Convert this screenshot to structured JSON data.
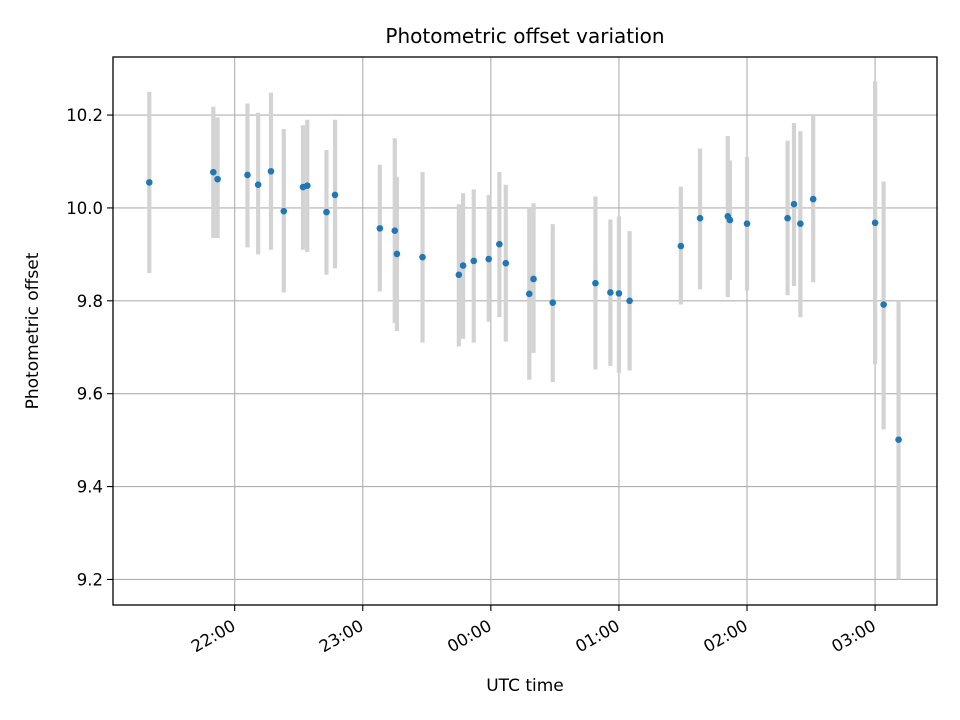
{
  "chart_data": {
    "type": "scatter",
    "title": "Photometric offset variation",
    "xlabel": "UTC time",
    "ylabel": "Photometric offset",
    "grid": true,
    "xlim": [
      "21:03",
      "03:29"
    ],
    "ylim": [
      9.145,
      10.325
    ],
    "x_ticks": [
      "22:00",
      "23:00",
      "00:00",
      "01:00",
      "02:00",
      "03:00"
    ],
    "y_ticks": [
      "9.2",
      "9.4",
      "9.6",
      "9.8",
      "10.0",
      "10.2"
    ],
    "colors": {
      "point": "#1f77b4",
      "errorbar": "#d3d3d3",
      "grid": "#b0b0b0"
    },
    "points": [
      {
        "x": "21:20",
        "y": 10.055,
        "lo": 9.86,
        "hi": 10.25
      },
      {
        "x": "21:50",
        "y": 10.077,
        "lo": 9.935,
        "hi": 10.218
      },
      {
        "x": "21:52",
        "y": 10.062,
        "lo": 9.935,
        "hi": 10.195
      },
      {
        "x": "22:06",
        "y": 10.071,
        "lo": 9.915,
        "hi": 10.225
      },
      {
        "x": "22:11",
        "y": 10.05,
        "lo": 9.9,
        "hi": 10.205
      },
      {
        "x": "22:17",
        "y": 10.079,
        "lo": 9.91,
        "hi": 10.248
      },
      {
        "x": "22:23",
        "y": 9.993,
        "lo": 9.818,
        "hi": 10.17
      },
      {
        "x": "22:32",
        "y": 10.045,
        "lo": 9.91,
        "hi": 10.178
      },
      {
        "x": "22:34",
        "y": 10.048,
        "lo": 9.905,
        "hi": 10.19
      },
      {
        "x": "22:43",
        "y": 9.991,
        "lo": 9.856,
        "hi": 10.125
      },
      {
        "x": "22:47",
        "y": 10.028,
        "lo": 9.87,
        "hi": 10.19
      },
      {
        "x": "23:08",
        "y": 9.956,
        "lo": 9.82,
        "hi": 10.093
      },
      {
        "x": "23:15",
        "y": 9.951,
        "lo": 9.752,
        "hi": 10.15
      },
      {
        "x": "23:16",
        "y": 9.901,
        "lo": 9.735,
        "hi": 10.067
      },
      {
        "x": "23:28",
        "y": 9.894,
        "lo": 9.71,
        "hi": 10.077
      },
      {
        "x": "23:45",
        "y": 9.856,
        "lo": 9.702,
        "hi": 10.008
      },
      {
        "x": "23:47",
        "y": 9.876,
        "lo": 9.718,
        "hi": 10.032
      },
      {
        "x": "23:52",
        "y": 9.886,
        "lo": 9.71,
        "hi": 10.04
      },
      {
        "x": "23:59",
        "y": 9.89,
        "lo": 9.755,
        "hi": 10.028
      },
      {
        "x": "00:04",
        "y": 9.922,
        "lo": 9.765,
        "hi": 10.077
      },
      {
        "x": "00:07",
        "y": 9.881,
        "lo": 9.712,
        "hi": 10.05
      },
      {
        "x": "00:18",
        "y": 9.815,
        "lo": 9.63,
        "hi": 10.0
      },
      {
        "x": "00:20",
        "y": 9.847,
        "lo": 9.688,
        "hi": 10.01
      },
      {
        "x": "00:29",
        "y": 9.796,
        "lo": 9.625,
        "hi": 9.965
      },
      {
        "x": "00:49",
        "y": 9.838,
        "lo": 9.652,
        "hi": 10.025
      },
      {
        "x": "00:56",
        "y": 9.818,
        "lo": 9.66,
        "hi": 9.975
      },
      {
        "x": "01:00",
        "y": 9.816,
        "lo": 9.645,
        "hi": 9.982
      },
      {
        "x": "01:05",
        "y": 9.8,
        "lo": 9.65,
        "hi": 9.95
      },
      {
        "x": "01:29",
        "y": 9.918,
        "lo": 9.792,
        "hi": 10.046
      },
      {
        "x": "01:38",
        "y": 9.978,
        "lo": 9.825,
        "hi": 10.128
      },
      {
        "x": "01:51",
        "y": 9.982,
        "lo": 9.808,
        "hi": 10.155
      },
      {
        "x": "01:52",
        "y": 9.974,
        "lo": 9.845,
        "hi": 10.102
      },
      {
        "x": "02:00",
        "y": 9.966,
        "lo": 9.822,
        "hi": 10.11
      },
      {
        "x": "02:19",
        "y": 9.978,
        "lo": 9.812,
        "hi": 10.145
      },
      {
        "x": "02:22",
        "y": 10.008,
        "lo": 9.832,
        "hi": 10.183
      },
      {
        "x": "02:25",
        "y": 9.966,
        "lo": 9.765,
        "hi": 10.165
      },
      {
        "x": "02:31",
        "y": 10.019,
        "lo": 9.84,
        "hi": 10.2
      },
      {
        "x": "03:00",
        "y": 9.968,
        "lo": 9.663,
        "hi": 10.273
      },
      {
        "x": "03:04",
        "y": 9.792,
        "lo": 9.523,
        "hi": 10.057
      },
      {
        "x": "03:11",
        "y": 9.501,
        "lo": 9.2,
        "hi": 9.8
      }
    ]
  }
}
